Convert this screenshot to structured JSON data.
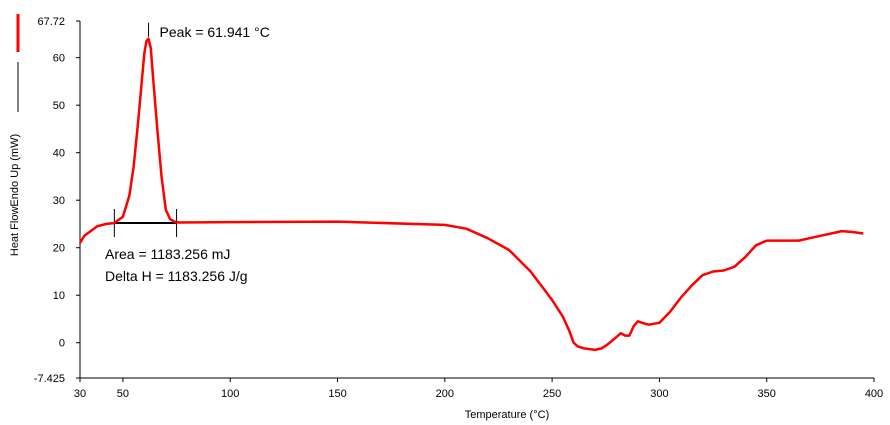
{
  "chart_data": {
    "type": "line",
    "title": "",
    "xlabel": "Temperature (°C)",
    "ylabel": "Heat FlowEndo Up (mW)",
    "xlim": [
      30,
      400
    ],
    "ylim": [
      -7.425,
      67.72
    ],
    "x_ticks": [
      30,
      50,
      100,
      150,
      200,
      250,
      300,
      350,
      400
    ],
    "x_tick_labels": [
      "30",
      "50",
      "100",
      "150",
      "200",
      "250",
      "300",
      "350",
      "400"
    ],
    "y_ticks": [
      -7.425,
      0,
      10,
      20,
      30,
      40,
      50,
      60,
      67.72
    ],
    "y_tick_labels": [
      "-7.425",
      "0",
      "10",
      "20",
      "30",
      "40",
      "50",
      "60",
      "67.72"
    ],
    "grid": false,
    "series": [
      {
        "color": "#ff0000",
        "x": [
          30,
          32,
          35,
          38,
          42,
          46,
          50,
          53,
          55,
          57,
          59,
          60,
          61,
          61.941,
          63,
          64,
          66,
          68,
          70,
          72,
          74,
          76,
          100,
          150,
          200,
          210,
          220,
          230,
          240,
          245,
          250,
          255,
          258,
          260,
          262,
          265,
          270,
          273,
          276,
          280,
          282,
          284,
          286,
          288,
          290,
          292,
          295,
          300,
          305,
          310,
          315,
          320,
          325,
          330,
          335,
          340,
          345,
          350,
          355,
          360,
          365,
          370,
          375,
          380,
          385,
          390,
          395
        ],
        "y": [
          21,
          22.5,
          23.5,
          24.5,
          25,
          25.2,
          26.5,
          31,
          37,
          46,
          56,
          61,
          63.5,
          64,
          62,
          56,
          45,
          35,
          28,
          26,
          25.5,
          25.3,
          25.4,
          25.5,
          24.8,
          24,
          22,
          19.5,
          15,
          12,
          9,
          5.5,
          2.5,
          0,
          -0.8,
          -1.2,
          -1.5,
          -1.2,
          -0.3,
          1.2,
          2,
          1.5,
          1.5,
          3.5,
          4.5,
          4.2,
          3.8,
          4.2,
          6.5,
          9.5,
          12,
          14.2,
          15,
          15.2,
          16,
          18,
          20.5,
          21.5,
          21.5,
          21.5,
          21.5,
          22,
          22.5,
          23,
          23.5,
          23.3,
          23
        ]
      }
    ],
    "peak_annotation": {
      "text": "Peak = 61.941 °C",
      "x": 61.941,
      "y": 64
    },
    "area_annotation": {
      "x_start": 46,
      "x_end": 75,
      "y": 25.2,
      "line1": "Area = 1183.256 mJ",
      "line2": "Delta H = 1183.256 J/g"
    }
  }
}
